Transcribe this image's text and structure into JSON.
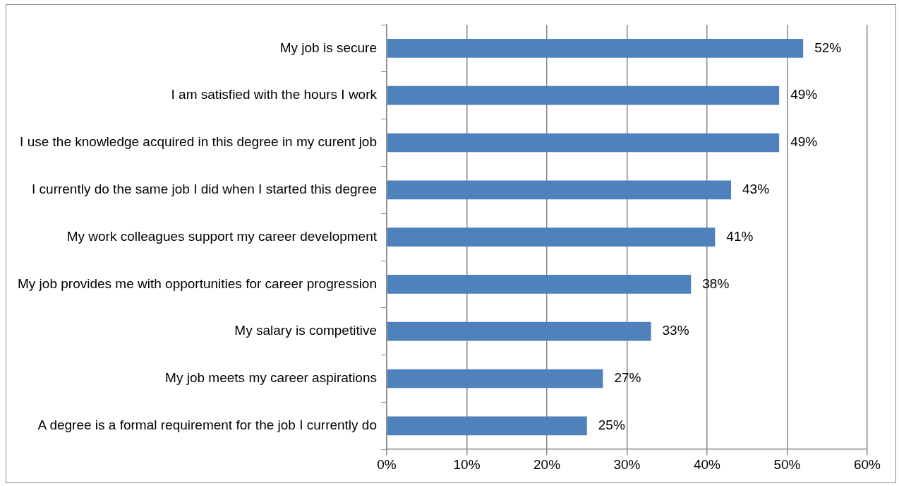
{
  "chart_data": {
    "type": "bar",
    "orientation": "horizontal",
    "categories": [
      "My job is secure",
      "I am satisfied with the hours I work",
      "I use the knowledge acquired in this degree in my curent job",
      "I currently do the same job I did when I started this degree",
      "My work colleagues support my career development",
      "My job provides me with opportunities for career progression",
      "My salary is competitive",
      "My job meets my career aspirations",
      "A degree is a formal requirement for the job I currently do"
    ],
    "values": [
      52,
      49,
      49,
      43,
      41,
      38,
      33,
      27,
      25
    ],
    "value_labels": [
      "52%",
      "49%",
      "49%",
      "43%",
      "41%",
      "38%",
      "33%",
      "27%",
      "25%"
    ],
    "color": "#4f81bd",
    "xlim": [
      0,
      60
    ],
    "xticks": [
      {
        "value": 0,
        "label": "0%"
      },
      {
        "value": 10,
        "label": "10%"
      },
      {
        "value": 20,
        "label": "20%"
      },
      {
        "value": 30,
        "label": "30%"
      },
      {
        "value": 40,
        "label": "40%"
      },
      {
        "value": 50,
        "label": "50%"
      },
      {
        "value": 60,
        "label": "60%"
      }
    ],
    "grid": "x",
    "legend": false
  }
}
